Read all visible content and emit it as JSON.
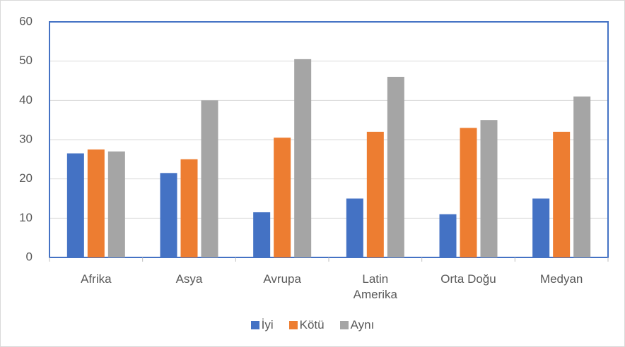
{
  "chart_data": {
    "type": "bar",
    "categories": [
      "Afrika",
      "Asya",
      "Avrupa",
      "Latin Amerika",
      "Orta Doğu",
      "Medyan"
    ],
    "series": [
      {
        "name": "İyi",
        "color": "#4472c4",
        "values": [
          26.5,
          21.5,
          11.5,
          15,
          11,
          15
        ]
      },
      {
        "name": "Kötü",
        "color": "#ed7d31",
        "values": [
          27.5,
          25,
          30.5,
          32,
          33,
          32
        ]
      },
      {
        "name": "Aynı",
        "color": "#a5a5a5",
        "values": [
          27,
          40,
          50.5,
          46,
          35,
          41
        ]
      }
    ],
    "ylim": [
      0,
      60
    ],
    "yticks": [
      0,
      10,
      20,
      30,
      40,
      50,
      60
    ],
    "grid": true,
    "legend": "bottom"
  }
}
